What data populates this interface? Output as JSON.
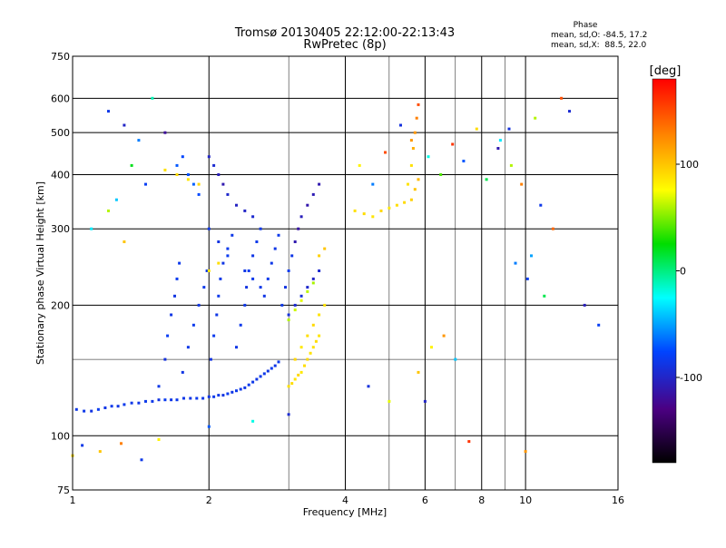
{
  "chart_data": {
    "type": "scatter",
    "title": "Tromsø 20130405 22:12:00-22:13:43",
    "subtitle": "RwPretec (8p)",
    "xlabel": "Frequency [MHz]",
    "ylabel": "Stationary phase Virtual Height [km]",
    "x_scale": "log",
    "y_scale": "log",
    "xlim": [
      1,
      16
    ],
    "ylim": [
      75,
      750
    ],
    "x_ticks": [
      1,
      2,
      4,
      6,
      8,
      10,
      16
    ],
    "x_tick_labels": [
      "1",
      "2",
      "4",
      "6",
      "8",
      "10",
      "16"
    ],
    "x_minor_grid": [
      3,
      5,
      7,
      9
    ],
    "y_ticks": [
      75,
      100,
      200,
      300,
      400,
      500,
      600,
      750
    ],
    "y_tick_labels": [
      "75",
      "100",
      "200",
      "300",
      "400",
      "500",
      "600",
      "750"
    ],
    "y_minor_grid": [
      150
    ],
    "grid": true,
    "stats": {
      "heading": "Phase",
      "line_o": "mean, sd,O: -84.5, 17.2",
      "line_x": "mean, sd,X:  88.5, 22.0"
    },
    "colorbar": {
      "label": "[deg]",
      "range": [
        -180,
        180
      ],
      "ticks": [
        100,
        0,
        -100
      ],
      "tick_labels": [
        "100",
        "0",
        "-100"
      ]
    },
    "series": [
      {
        "trace": "o-mode low trace",
        "x": [
          1.02,
          1.06,
          1.1,
          1.14,
          1.18,
          1.22,
          1.26,
          1.3,
          1.35,
          1.4,
          1.45,
          1.5,
          1.55,
          1.6,
          1.65,
          1.7,
          1.76,
          1.82,
          1.88,
          1.94,
          2.0,
          2.05,
          2.1,
          2.15,
          2.2,
          2.25,
          2.3,
          2.35,
          2.4,
          2.45,
          2.5,
          2.55,
          2.6,
          2.65,
          2.7,
          2.75,
          2.8,
          2.85
        ],
        "y": [
          115,
          114,
          114,
          115,
          116,
          117,
          117,
          118,
          119,
          119,
          120,
          120,
          121,
          121,
          121,
          121,
          122,
          122,
          122,
          122,
          123,
          123,
          124,
          124,
          125,
          126,
          127,
          128,
          129,
          131,
          133,
          135,
          137,
          139,
          141,
          143,
          145,
          148
        ],
        "phase": [
          -85,
          -85,
          -88,
          -82,
          -86,
          -84,
          -87,
          -83,
          -85,
          -86,
          -84,
          -85,
          -88,
          -82,
          -86,
          -84,
          -85,
          -87,
          -83,
          -85,
          -86,
          -84,
          -85,
          -88,
          -82,
          -86,
          -84,
          -85,
          -87,
          -83,
          -85,
          -86,
          -84,
          -85,
          -88,
          -82,
          -86,
          -84
        ]
      },
      {
        "trace": "o-mode cusps and spread",
        "x": [
          1.55,
          1.6,
          1.62,
          1.65,
          1.68,
          1.7,
          1.72,
          1.75,
          1.8,
          1.85,
          1.9,
          1.95,
          1.98,
          2.02,
          2.05,
          2.08,
          2.1,
          2.12,
          2.15,
          2.2,
          2.25,
          2.3,
          2.35,
          2.4,
          2.42,
          2.45,
          2.5,
          2.55,
          2.6,
          2.65,
          2.7,
          2.75,
          2.8,
          2.85,
          2.9,
          2.95,
          3.0,
          3.05,
          3.1,
          3.15,
          3.2,
          3.3,
          3.4,
          3.5,
          2.0,
          2.05,
          2.1,
          2.15,
          2.2,
          2.3,
          2.4,
          2.5,
          1.7,
          1.75,
          1.8,
          1.85,
          1.9,
          2.0,
          2.1,
          2.2,
          2.4,
          2.5,
          2.6,
          3.0,
          3.1,
          3.2,
          3.3,
          3.4,
          3.5
        ],
        "y": [
          130,
          150,
          170,
          190,
          210,
          230,
          250,
          140,
          160,
          180,
          200,
          220,
          240,
          150,
          170,
          190,
          210,
          230,
          250,
          270,
          290,
          160,
          180,
          200,
          220,
          240,
          260,
          280,
          300,
          210,
          230,
          250,
          270,
          290,
          200,
          220,
          240,
          260,
          280,
          300,
          320,
          340,
          360,
          380,
          440,
          420,
          400,
          380,
          360,
          340,
          330,
          320,
          420,
          440,
          400,
          380,
          360,
          300,
          280,
          260,
          240,
          230,
          220,
          190,
          200,
          210,
          220,
          230,
          240
        ],
        "phase": [
          -85,
          -90,
          -80,
          -86,
          -88,
          -82,
          -84,
          -87,
          -85,
          -83,
          -86,
          -84,
          -85,
          -88,
          -82,
          -86,
          -84,
          -85,
          -87,
          -83,
          -85,
          -86,
          -84,
          -85,
          -88,
          -82,
          -86,
          -84,
          -85,
          -87,
          -83,
          -85,
          -86,
          -84,
          -85,
          -88,
          -82,
          -86,
          -110,
          -115,
          -105,
          -112,
          -108,
          -110,
          -100,
          -95,
          -105,
          -110,
          -98,
          -102,
          -100,
          -96,
          -70,
          -75,
          -72,
          -68,
          -74,
          -85,
          -88,
          -82,
          -86,
          -84,
          -85,
          -90,
          -95,
          -92,
          -98,
          -100,
          -96
        ]
      },
      {
        "trace": "x-mode traces",
        "x": [
          3.0,
          3.05,
          3.1,
          3.15,
          3.2,
          3.25,
          3.3,
          3.35,
          3.4,
          3.45,
          3.5,
          3.1,
          3.2,
          3.3,
          3.4,
          3.5,
          3.6,
          3.0,
          3.1,
          3.2,
          3.3,
          3.4,
          4.2,
          4.4,
          4.6,
          4.8,
          5.0,
          5.2,
          5.4,
          5.5,
          5.6,
          5.65,
          5.7,
          5.75,
          5.8,
          5.6,
          5.7,
          5.8,
          1.6,
          1.7,
          1.8,
          1.9,
          2.0,
          2.1,
          3.5,
          3.6
        ],
        "y": [
          130,
          132,
          135,
          138,
          140,
          145,
          150,
          155,
          160,
          165,
          170,
          150,
          160,
          170,
          180,
          190,
          200,
          185,
          195,
          205,
          215,
          225,
          330,
          325,
          320,
          330,
          335,
          340,
          345,
          380,
          420,
          460,
          500,
          540,
          580,
          350,
          370,
          390,
          410,
          400,
          390,
          380,
          240,
          250,
          260,
          270
        ],
        "phase": [
          88,
          90,
          86,
          92,
          85,
          89,
          91,
          87,
          88,
          90,
          86,
          92,
          85,
          89,
          91,
          87,
          88,
          60,
          65,
          70,
          62,
          58,
          88,
          90,
          86,
          92,
          85,
          89,
          91,
          87,
          88,
          110,
          120,
          130,
          150,
          95,
          100,
          105,
          88,
          90,
          86,
          92,
          85,
          89,
          95,
          100
        ]
      },
      {
        "trace": "scattered echoes",
        "x": [
          1.2,
          1.3,
          1.4,
          1.5,
          1.6,
          1.25,
          1.35,
          1.45,
          1.1,
          1.2,
          1.3,
          4.3,
          4.6,
          4.9,
          5.3,
          5.6,
          6.1,
          6.5,
          6.9,
          7.3,
          7.8,
          8.2,
          8.7,
          9.3,
          9.8,
          10.3,
          10.8,
          11.5,
          12.5,
          13.5,
          14.5,
          5.8,
          6.2,
          6.6,
          7.0,
          4.5,
          5.0,
          9.5,
          10.1,
          11.0,
          1.0,
          1.05,
          1.15,
          1.28,
          1.42,
          1.55,
          2.0,
          2.5,
          3.0,
          6.0,
          7.5,
          10.0,
          8.8,
          9.2,
          10.5,
          12.0
        ],
        "y": [
          560,
          520,
          480,
          600,
          500,
          350,
          420,
          380,
          300,
          330,
          280,
          420,
          380,
          450,
          520,
          480,
          440,
          400,
          470,
          430,
          510,
          390,
          460,
          420,
          380,
          260,
          340,
          300,
          560,
          200,
          180,
          140,
          160,
          170,
          150,
          130,
          120,
          250,
          230,
          210,
          90,
          95,
          92,
          96,
          88,
          98,
          105,
          108,
          112,
          120,
          97,
          92,
          480,
          510,
          540,
          600
        ],
        "phase": [
          -85,
          -100,
          -60,
          -10,
          -120,
          -40,
          20,
          -80,
          -30,
          60,
          100,
          80,
          -60,
          150,
          -90,
          120,
          -20,
          40,
          160,
          -70,
          90,
          10,
          -110,
          60,
          130,
          -50,
          -85,
          140,
          -95,
          -105,
          -80,
          100,
          80,
          120,
          -40,
          -90,
          70,
          -60,
          -80,
          10,
          90,
          -85,
          100,
          130,
          -85,
          80,
          -70,
          -20,
          -95,
          -100,
          160,
          120,
          -30,
          -90,
          60,
          150
        ]
      }
    ]
  }
}
